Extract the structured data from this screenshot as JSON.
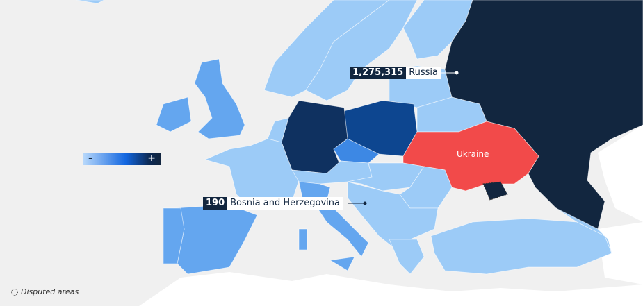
{
  "map": {
    "colors": {
      "sea": "#f0f0f0",
      "no_data": "#ffffff",
      "low": "#9ccbf7",
      "mid": "#64a6ef",
      "czechia": "#3d88e4",
      "poland": "#0d4690",
      "germany": "#0f3160",
      "russia": "#12263f",
      "ukraine": "#f24a4a"
    },
    "highlighted_country": "Ukraine",
    "callouts": [
      {
        "value": "1,275,315",
        "country": "Russia"
      },
      {
        "value": "190",
        "country": "Bosnia and Herzegovina"
      }
    ],
    "legend": {
      "min_label": "-",
      "max_label": "+"
    },
    "disputed_label": "Disputed areas"
  }
}
